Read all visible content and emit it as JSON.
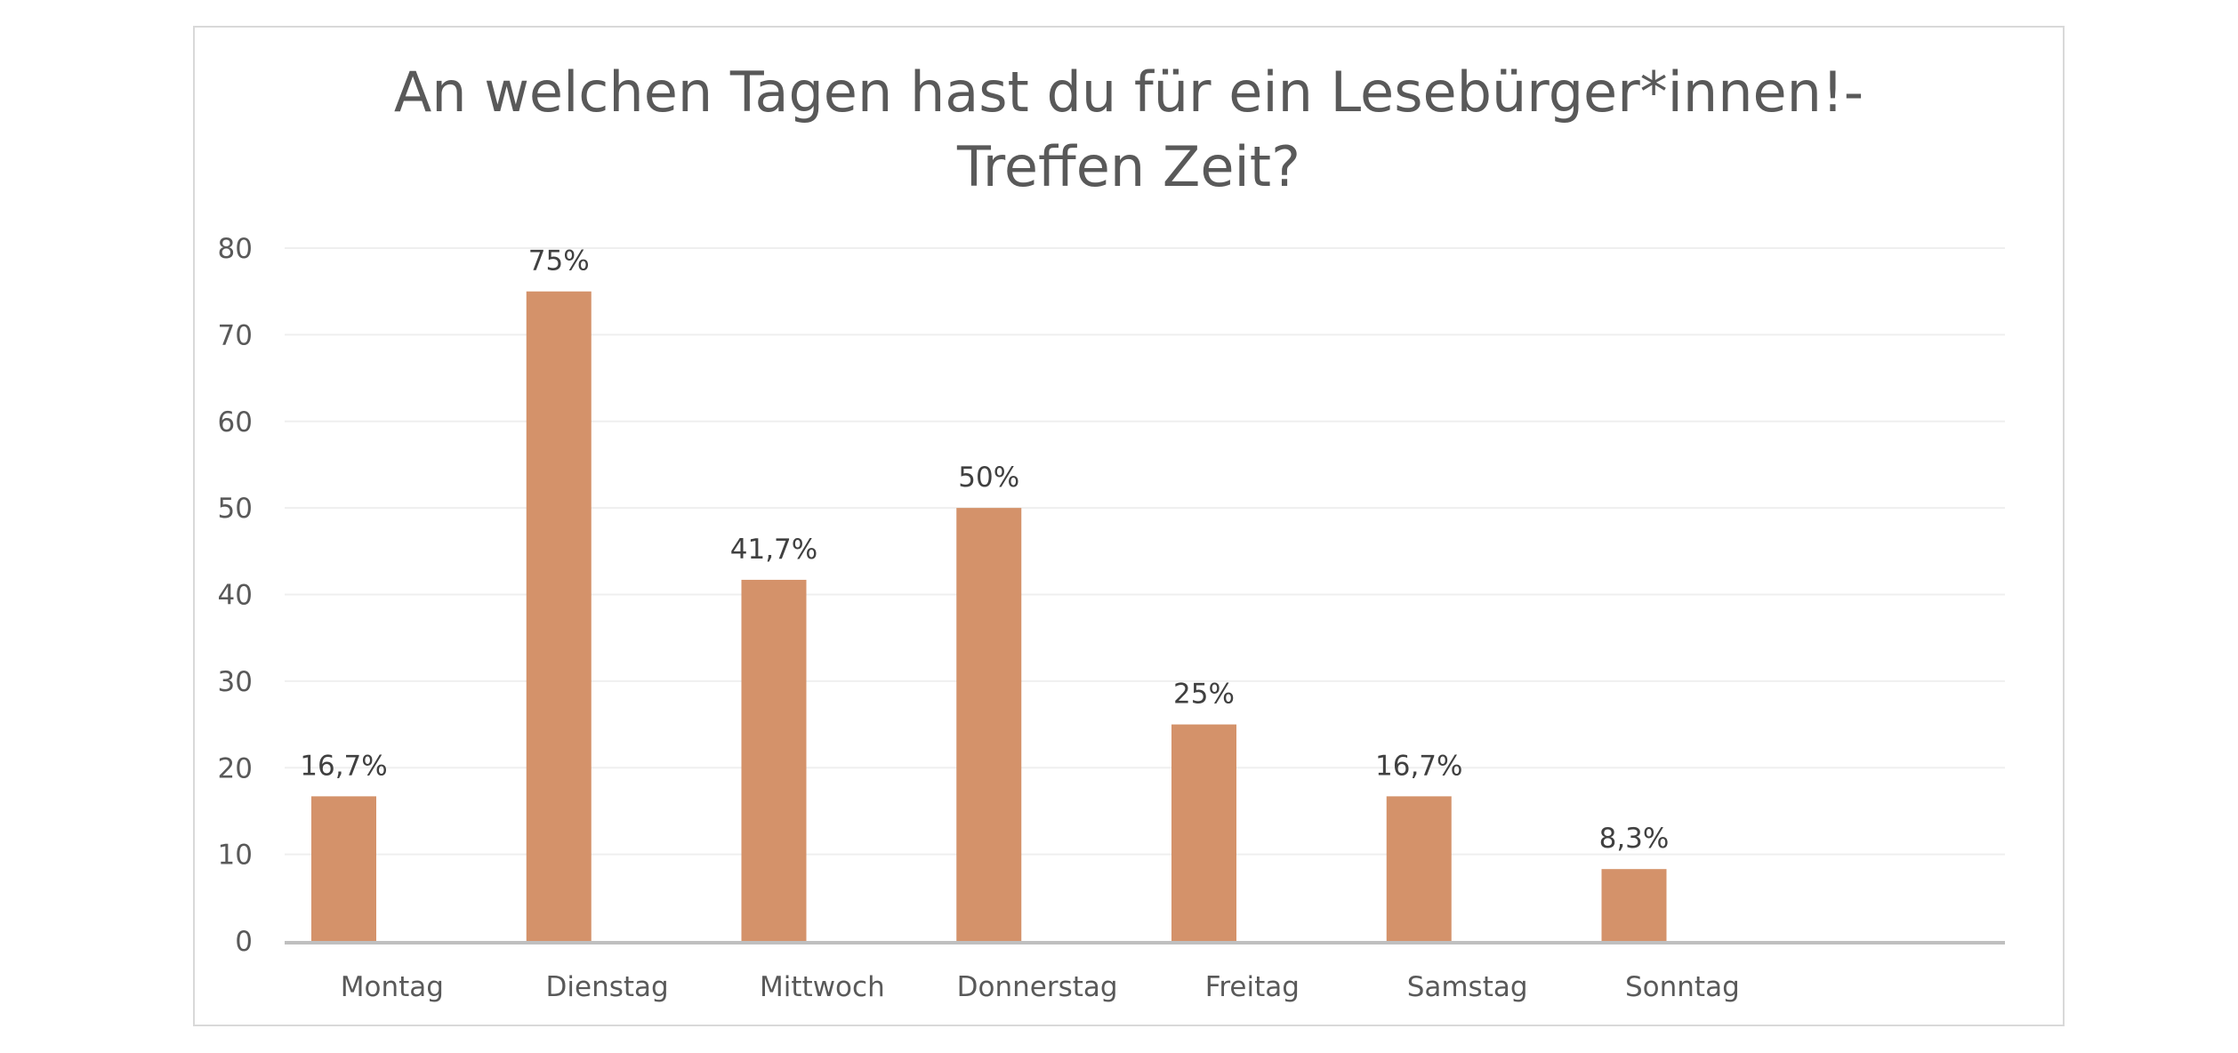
{
  "chart_data": {
    "type": "bar",
    "title_lines": [
      "An welchen Tagen hast du für ein Lesebürger*innen!-",
      "Treffen Zeit?"
    ],
    "categories": [
      "Montag",
      "Dienstag",
      "Mittwoch",
      "Donnerstag",
      "Freitag",
      "Samstag",
      "Sonntag",
      ""
    ],
    "values": [
      16.7,
      75,
      41.7,
      50,
      25,
      16.7,
      8.3,
      null
    ],
    "data_labels": [
      "16,7%",
      "75%",
      "41,7%",
      "50%",
      "25%",
      "16,7%",
      "8,3%",
      ""
    ],
    "ylim": [
      0,
      80
    ],
    "yticks": [
      "0",
      "10",
      "20",
      "30",
      "40",
      "50",
      "60",
      "70",
      "80"
    ],
    "xlabel": "",
    "ylabel": "",
    "grid": true,
    "legend": "none",
    "bar_color": "#d4926a"
  }
}
